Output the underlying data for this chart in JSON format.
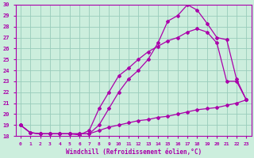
{
  "xlabel": "Windchill (Refroidissement éolien,°C)",
  "bg_color": "#cceedd",
  "line_color": "#aa00aa",
  "grid_color": "#99ccbb",
  "xlim_min": -0.5,
  "xlim_max": 23.5,
  "ylim_min": 18,
  "ylim_max": 30,
  "xticks": [
    0,
    1,
    2,
    3,
    4,
    5,
    6,
    7,
    8,
    9,
    10,
    11,
    12,
    13,
    14,
    15,
    16,
    17,
    18,
    19,
    20,
    21,
    22,
    23
  ],
  "yticks": [
    18,
    19,
    20,
    21,
    22,
    23,
    24,
    25,
    26,
    27,
    28,
    29,
    30
  ],
  "curve1_x": [
    0,
    1,
    2,
    3,
    4,
    5,
    6,
    7,
    8,
    9,
    10,
    11,
    12,
    13,
    14,
    15,
    16,
    17,
    18,
    19,
    20,
    21,
    22,
    23
  ],
  "curve1_y": [
    19.0,
    18.3,
    18.2,
    18.2,
    18.2,
    18.2,
    18.1,
    18.5,
    20.5,
    22.0,
    23.5,
    24.2,
    25.0,
    25.7,
    26.2,
    26.7,
    27.0,
    27.5,
    27.8,
    27.5,
    26.5,
    23.0,
    23.0,
    21.3
  ],
  "curve2_x": [
    0,
    1,
    2,
    3,
    4,
    5,
    6,
    7,
    8,
    9,
    10,
    11,
    12,
    13,
    14,
    15,
    16,
    17,
    18,
    19,
    20,
    21,
    22,
    23
  ],
  "curve2_y": [
    19.0,
    18.3,
    18.2,
    18.2,
    18.2,
    18.2,
    18.2,
    18.2,
    19.0,
    20.5,
    22.0,
    23.2,
    24.0,
    25.0,
    26.5,
    28.5,
    29.0,
    30.0,
    29.5,
    28.3,
    27.0,
    26.8,
    23.2,
    21.3
  ],
  "curve3_x": [
    0,
    1,
    2,
    3,
    4,
    5,
    6,
    7,
    8,
    9,
    10,
    11,
    12,
    13,
    14,
    15,
    16,
    17,
    18,
    19,
    20,
    21,
    22,
    23
  ],
  "curve3_y": [
    19.0,
    18.3,
    18.2,
    18.2,
    18.2,
    18.2,
    18.2,
    18.2,
    18.5,
    18.8,
    19.0,
    19.2,
    19.4,
    19.5,
    19.7,
    19.8,
    20.0,
    20.2,
    20.4,
    20.5,
    20.6,
    20.8,
    21.0,
    21.3
  ]
}
